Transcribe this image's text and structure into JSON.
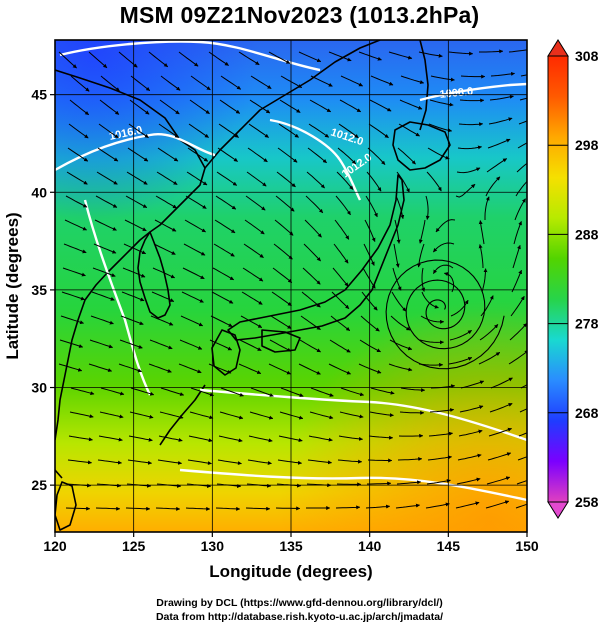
{
  "title": "MSM 09Z21Nov2023 (1013.2hPa)",
  "map": {
    "lon_range": [
      120,
      150
    ],
    "lat_range": [
      22.6,
      47.8
    ],
    "x_ticks": [
      "120",
      "125",
      "130",
      "135",
      "140",
      "145",
      "150"
    ],
    "y_ticks": [
      "25",
      "30",
      "35",
      "40",
      "45"
    ],
    "xlabel": "Longitude (degrees)",
    "ylabel": "Latitude  (degrees)",
    "isobar_labels": [
      "1016.0",
      "1012.0",
      "1008.0",
      "1012.0"
    ],
    "low_center": {
      "lon": 144.5,
      "lat": 34.0
    },
    "colors": {
      "land_outline": "#000000",
      "isobar": "#ffffff",
      "grid": "#000000"
    }
  },
  "colorbar": {
    "ticks": [
      "308",
      "298",
      "288",
      "278",
      "268",
      "258"
    ],
    "min": 258,
    "max": 308,
    "colors": [
      "#e040c0",
      "#7b00ff",
      "#1f3cff",
      "#2a8cff",
      "#19d9d0",
      "#27d44a",
      "#52d400",
      "#b7ea00",
      "#f5e000",
      "#ffa800",
      "#ff5a00",
      "#ff2a00"
    ]
  },
  "credits": {
    "line1": "Drawing by DCL (https://www.gfd-dennou.org/library/dcl/)",
    "line2": "Data from http://database.rish.kyoto-u.ac.jp/arch/jmadata/"
  }
}
